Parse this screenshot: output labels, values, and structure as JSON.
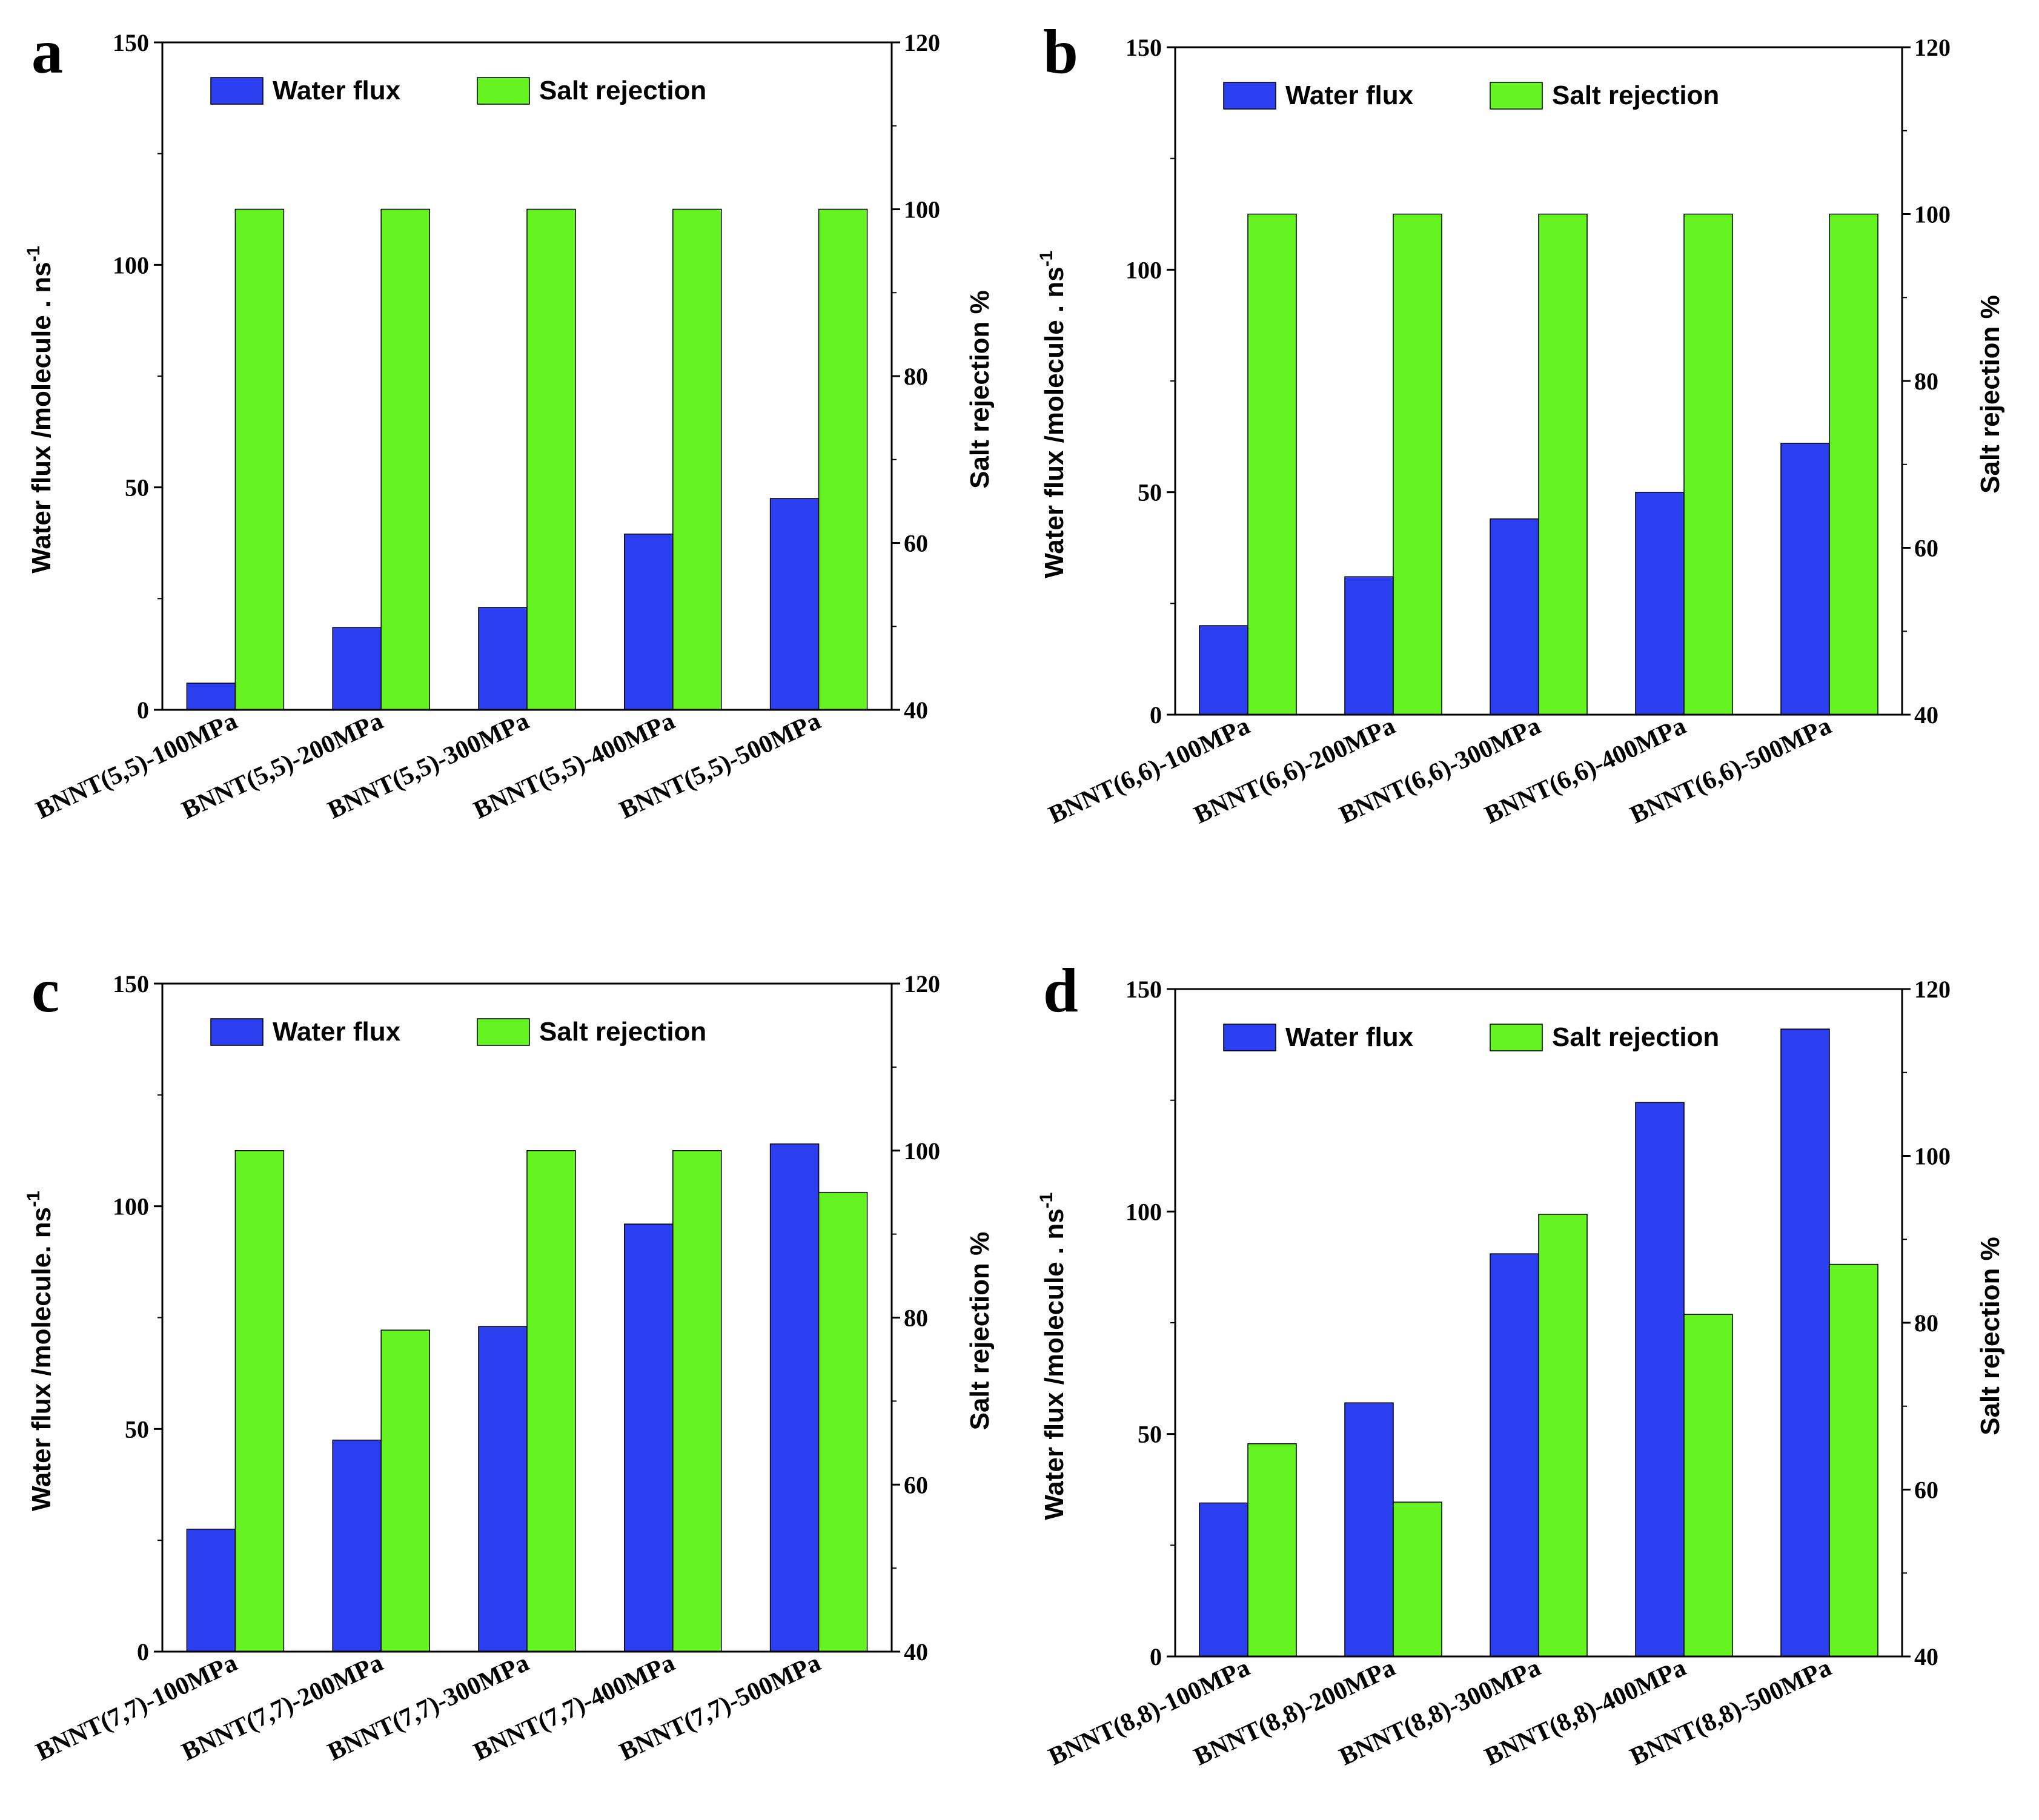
{
  "colors": {
    "water_flux": "#2b3ff0",
    "salt_rejection": "#66f322",
    "axis": "#000000"
  },
  "chart_data": [
    {
      "panel": "a",
      "type": "bar",
      "categories": [
        "BNNT(5,5)-100MPa",
        "BNNT(5,5)-200MPa",
        "BNNT(5,5)-300MPa",
        "BNNT(5,5)-400MPa",
        "BNNT(5,5)-500MPa"
      ],
      "series": [
        {
          "name": "Water flux",
          "axis": "left",
          "values": [
            6,
            18.5,
            23,
            39.5,
            47.5
          ]
        },
        {
          "name": "Salt rejection",
          "axis": "right",
          "values": [
            100,
            100,
            100,
            100,
            100
          ]
        }
      ],
      "ylabel": "Water flux /molecule . ns",
      "ylabel_sup": "-1",
      "y2label": "Salt rejection %",
      "ylim": [
        0,
        150
      ],
      "yticks": [
        "0",
        "50",
        "100",
        "150"
      ],
      "y2lim": [
        40,
        120
      ],
      "y2ticks": [
        "40",
        "60",
        "80",
        "100",
        "120"
      ],
      "legend": "top-left"
    },
    {
      "panel": "b",
      "type": "bar",
      "categories": [
        "BNNT(6,6)-100MPa",
        "BNNT(6,6)-200MPa",
        "BNNT(6,6)-300MPa",
        "BNNT(6,6)-400MPa",
        "BNNT(6,6)-500MPa"
      ],
      "series": [
        {
          "name": "Water flux",
          "axis": "left",
          "values": [
            20,
            31,
            44,
            50,
            61
          ]
        },
        {
          "name": "Salt rejection",
          "axis": "right",
          "values": [
            100,
            100,
            100,
            100,
            100
          ]
        }
      ],
      "ylabel": "Water flux /molecule . ns",
      "ylabel_sup": "-1",
      "y2label": "Salt rejection %",
      "ylim": [
        0,
        150
      ],
      "yticks": [
        "0",
        "50",
        "100",
        "150"
      ],
      "y2lim": [
        40,
        120
      ],
      "y2ticks": [
        "40",
        "60",
        "80",
        "100",
        "120"
      ],
      "legend": "top-left"
    },
    {
      "panel": "c",
      "type": "bar",
      "categories": [
        "BNNT(7,7)-100MPa",
        "BNNT(7,7)-200MPa",
        "BNNT(7,7)-300MPa",
        "BNNT(7,7)-400MPa",
        "BNNT(7,7)-500MPa"
      ],
      "series": [
        {
          "name": "Water flux",
          "axis": "left",
          "values": [
            27.5,
            47.5,
            73,
            96,
            114
          ]
        },
        {
          "name": "Salt rejection",
          "axis": "right",
          "values": [
            100,
            78.5,
            100,
            100,
            95
          ]
        }
      ],
      "ylabel": "Water flux /molecule. ns",
      "ylabel_sup": "-1",
      "y2label": "Salt rejection %",
      "ylim": [
        0,
        150
      ],
      "yticks": [
        "0",
        "50",
        "100",
        "150"
      ],
      "y2lim": [
        40,
        120
      ],
      "y2ticks": [
        "40",
        "60",
        "80",
        "100",
        "120"
      ],
      "legend": "top-left"
    },
    {
      "panel": "d",
      "type": "bar",
      "categories": [
        "BNNT(8,8)-100MPa",
        "BNNT(8,8)-200MPa",
        "BNNT(8,8)-300MPa",
        "BNNT(8,8)-400MPa",
        "BNNT(8,8)-500MPa"
      ],
      "series": [
        {
          "name": "Water flux",
          "axis": "left",
          "values": [
            34.5,
            57,
            90.5,
            124.5,
            141
          ]
        },
        {
          "name": "Salt rejection",
          "axis": "right",
          "values": [
            65.5,
            58.5,
            93,
            81,
            87
          ]
        }
      ],
      "ylabel": "Water flux /molecule . ns",
      "ylabel_sup": "-1",
      "y2label": "Salt rejection %",
      "ylim": [
        0,
        150
      ],
      "yticks": [
        "0",
        "50",
        "100",
        "150"
      ],
      "y2lim": [
        40,
        120
      ],
      "y2ticks": [
        "40",
        "60",
        "80",
        "100",
        "120"
      ],
      "legend": "top-left"
    }
  ]
}
